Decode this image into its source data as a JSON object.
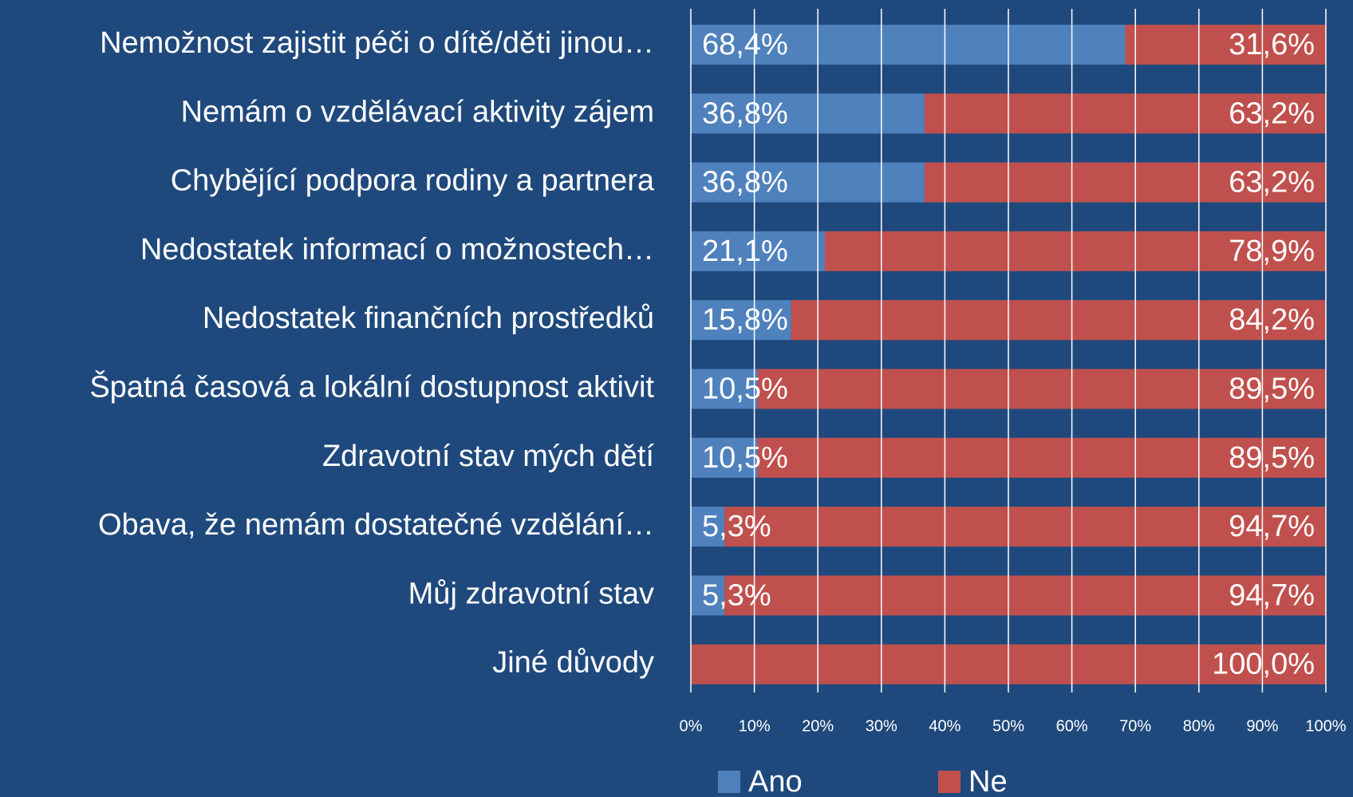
{
  "chart_data": {
    "type": "stacked_barh",
    "categories": [
      "Nemožnost zajistit péči o dítě/děti jinou…",
      "Nemám o vzdělávací aktivity zájem",
      "Chybějící podpora rodiny a partnera",
      "Nedostatek informací o možnostech…",
      "Nedostatek finančních prostředků",
      "Špatná časová a lokální dostupnost aktivit",
      "Zdravotní stav mých dětí",
      "Obava, že nemám dostatečné vzdělání…",
      "Můj zdravotní stav",
      "Jiné důvody"
    ],
    "series": [
      {
        "name": "Ano",
        "color": "#4f81bd",
        "values": [
          68.4,
          36.8,
          36.8,
          21.1,
          15.8,
          10.5,
          10.5,
          5.3,
          5.3,
          0
        ],
        "value_labels": [
          "68,4%",
          "36,8%",
          "36,8%",
          "21,1%",
          "15,8%",
          "10,5%",
          "10,5%",
          "5,3%",
          "5,3%",
          null
        ]
      },
      {
        "name": "Ne",
        "color": "#c0504d",
        "values": [
          31.6,
          63.2,
          63.2,
          78.9,
          84.2,
          89.5,
          89.5,
          94.7,
          94.7,
          100
        ],
        "value_labels": [
          "31,6%",
          "63,2%",
          "63,2%",
          "78,9%",
          "84,2%",
          "89,5%",
          "89,5%",
          "94,7%",
          "94,7%",
          "100,0%"
        ]
      }
    ],
    "xlim": [
      0,
      100
    ],
    "xticks": [
      {
        "value": 0,
        "label": "0%"
      },
      {
        "value": 10,
        "label": "10%"
      },
      {
        "value": 20,
        "label": "20%"
      },
      {
        "value": 30,
        "label": "30%"
      },
      {
        "value": 40,
        "label": "40%"
      },
      {
        "value": 50,
        "label": "50%"
      },
      {
        "value": 60,
        "label": "60%"
      },
      {
        "value": 70,
        "label": "70%"
      },
      {
        "value": 80,
        "label": "80%"
      },
      {
        "value": 90,
        "label": "90%"
      },
      {
        "value": 100,
        "label": "100%"
      }
    ],
    "grid": true,
    "legend": "bottom"
  }
}
